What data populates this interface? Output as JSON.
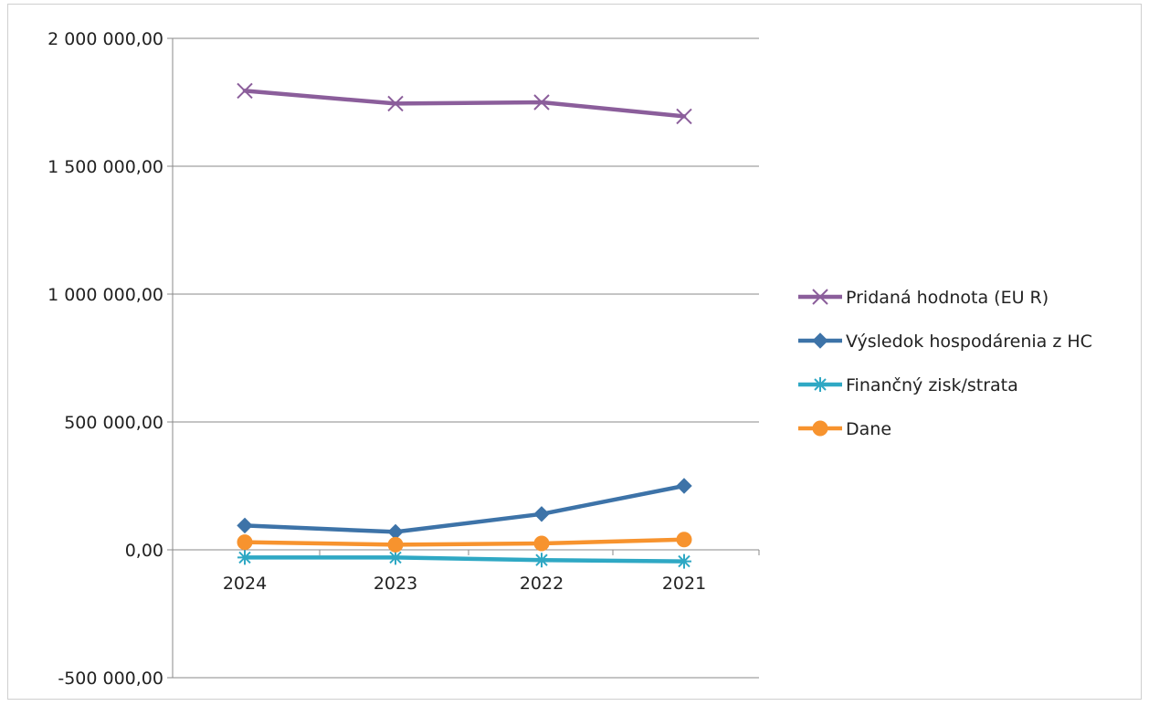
{
  "chart_data": {
    "type": "line",
    "categories": [
      "2024",
      "2023",
      "2022",
      "2021"
    ],
    "ylim": [
      -500000,
      2000000
    ],
    "y_ticks": [
      -500000,
      0,
      500000,
      1000000,
      1500000,
      2000000
    ],
    "y_tick_labels": [
      "-500 000,00",
      "0,00",
      "500 000,00",
      "1 000 000,00",
      "1 500 000,00",
      "2 000 000,00"
    ],
    "grid": "horizontal",
    "legend_position": "right",
    "series": [
      {
        "name": "Pridaná hodnota (EU R)",
        "values": [
          1795000,
          1745000,
          1750000,
          1695000
        ],
        "color": "#8B5E9B",
        "marker": "x"
      },
      {
        "name": "Výsledok hospodárenia z HC",
        "values": [
          95000,
          70000,
          140000,
          250000
        ],
        "color": "#3D73A8",
        "marker": "diamond"
      },
      {
        "name": "Finančný zisk/strata",
        "values": [
          -30000,
          -30000,
          -40000,
          -45000
        ],
        "color": "#2FA8C4",
        "marker": "star"
      },
      {
        "name": "Dane",
        "values": [
          30000,
          20000,
          25000,
          40000
        ],
        "color": "#F7932E",
        "marker": "circle"
      }
    ]
  }
}
